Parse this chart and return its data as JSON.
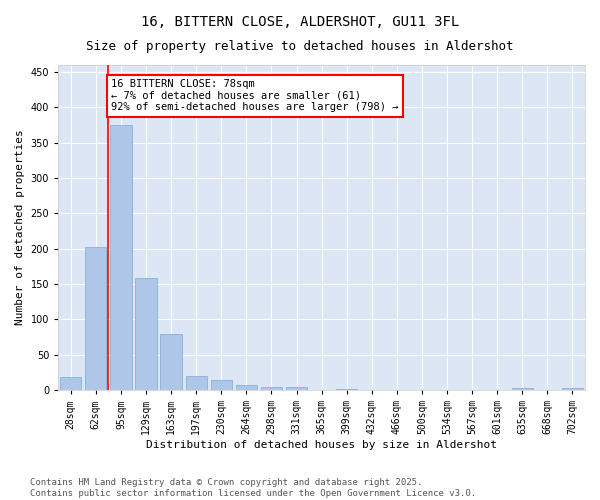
{
  "title_line1": "16, BITTERN CLOSE, ALDERSHOT, GU11 3FL",
  "title_line2": "Size of property relative to detached houses in Aldershot",
  "xlabel": "Distribution of detached houses by size in Aldershot",
  "ylabel": "Number of detached properties",
  "categories": [
    "28sqm",
    "62sqm",
    "95sqm",
    "129sqm",
    "163sqm",
    "197sqm",
    "230sqm",
    "264sqm",
    "298sqm",
    "331sqm",
    "365sqm",
    "399sqm",
    "432sqm",
    "466sqm",
    "500sqm",
    "534sqm",
    "567sqm",
    "601sqm",
    "635sqm",
    "668sqm",
    "702sqm"
  ],
  "values": [
    18,
    202,
    375,
    158,
    79,
    20,
    15,
    7,
    4,
    4,
    0,
    2,
    0,
    0,
    0,
    0,
    0,
    0,
    3,
    0,
    3
  ],
  "bar_color": "#aec6e8",
  "bar_edge_color": "#7aaed0",
  "plot_bg_color": "#dce6f5",
  "fig_bg_color": "#ffffff",
  "grid_color": "#ffffff",
  "annotation_text_line1": "16 BITTERN CLOSE: 78sqm",
  "annotation_text_line2": "← 7% of detached houses are smaller (61)",
  "annotation_text_line3": "92% of semi-detached houses are larger (798) →",
  "red_line_x": 1.5,
  "ylim": [
    0,
    460
  ],
  "yticks": [
    0,
    50,
    100,
    150,
    200,
    250,
    300,
    350,
    400,
    450
  ],
  "footer_line1": "Contains HM Land Registry data © Crown copyright and database right 2025.",
  "footer_line2": "Contains public sector information licensed under the Open Government Licence v3.0.",
  "title_fontsize": 10,
  "subtitle_fontsize": 9,
  "axis_label_fontsize": 8,
  "tick_fontsize": 7,
  "annotation_fontsize": 7.5,
  "footer_fontsize": 6.5
}
